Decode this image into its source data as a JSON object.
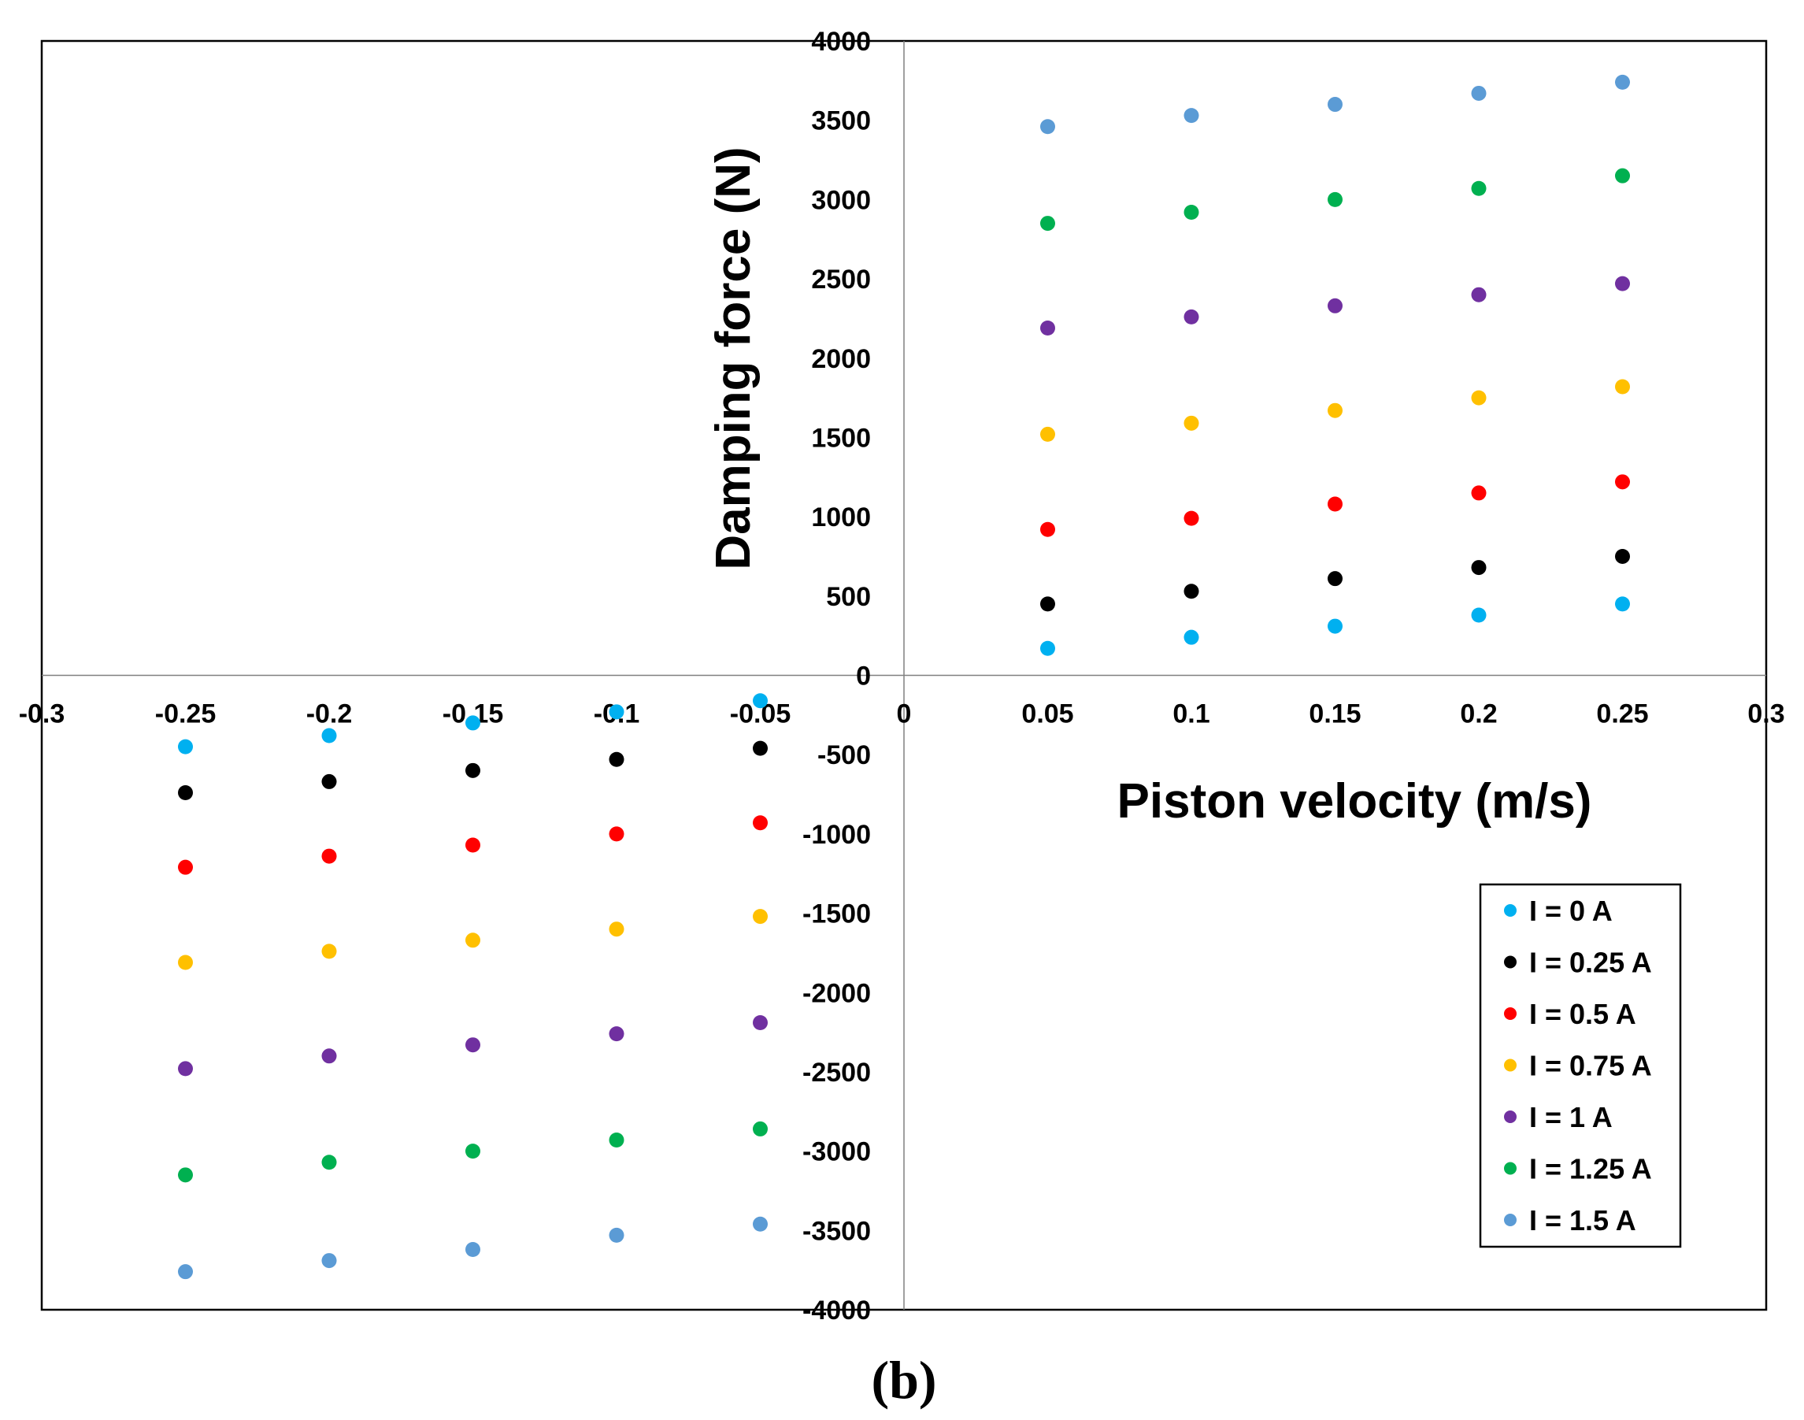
{
  "chart_data": {
    "type": "scatter",
    "title": "",
    "xlabel": "Piston velocity (m/s)",
    "ylabel": "Damping force (N)",
    "xlim": [
      -0.3,
      0.3
    ],
    "ylim": [
      -4000,
      4000
    ],
    "x_ticks": [
      -0.3,
      -0.25,
      -0.2,
      -0.15,
      -0.1,
      -0.05,
      0,
      0.05,
      0.1,
      0.15,
      0.2,
      0.25,
      0.3
    ],
    "x_tick_labels": [
      "-0.3",
      "-0.25",
      "-0.2",
      "-0.15",
      "-0.1",
      "-0.05",
      "0",
      "0.05",
      "0.1",
      "0.15",
      "0.2",
      "0.25",
      "0.3"
    ],
    "y_ticks": [
      -4000,
      -3500,
      -3000,
      -2500,
      -2000,
      -1500,
      -1000,
      -500,
      0,
      500,
      1000,
      1500,
      2000,
      2500,
      3000,
      3500,
      4000
    ],
    "y_tick_labels": [
      "-4000",
      "-3500",
      "-3000",
      "-2500",
      "-2000",
      "-1500",
      "-1000",
      "-500",
      "0",
      "500",
      "1000",
      "1500",
      "2000",
      "2500",
      "3000",
      "3500",
      "4000"
    ],
    "grid": false,
    "legend_position": "bottom-right",
    "x": [
      -0.25,
      -0.2,
      -0.15,
      -0.1,
      -0.05,
      0.05,
      0.1,
      0.15,
      0.2,
      0.25
    ],
    "series": [
      {
        "name": "I = 0 A",
        "color": "#00b0f0",
        "values": [
          -450,
          -380,
          -300,
          -230,
          -160,
          170,
          240,
          310,
          380,
          450
        ]
      },
      {
        "name": "I = 0.25 A",
        "color": "#000000",
        "values": [
          -740,
          -670,
          -600,
          -530,
          -460,
          450,
          530,
          610,
          680,
          750
        ]
      },
      {
        "name": "I = 0.5 A",
        "color": "#ff0000",
        "values": [
          -1210,
          -1140,
          -1070,
          -1000,
          -930,
          920,
          990,
          1080,
          1150,
          1220
        ]
      },
      {
        "name": "I = 0.75 A",
        "color": "#ffc000",
        "values": [
          -1810,
          -1740,
          -1670,
          -1600,
          -1520,
          1520,
          1590,
          1670,
          1750,
          1820
        ]
      },
      {
        "name": "I = 1 A",
        "color": "#7030a0",
        "values": [
          -2480,
          -2400,
          -2330,
          -2260,
          -2190,
          2190,
          2260,
          2330,
          2400,
          2470
        ]
      },
      {
        "name": "I = 1.25 A",
        "color": "#00b050",
        "values": [
          -3150,
          -3070,
          -3000,
          -2930,
          -2860,
          2850,
          2920,
          3000,
          3070,
          3150
        ]
      },
      {
        "name": "I = 1.5 A",
        "color": "#5b9bd5",
        "values": [
          -3760,
          -3690,
          -3620,
          -3530,
          -3460,
          3460,
          3530,
          3600,
          3670,
          3740
        ]
      }
    ]
  },
  "caption": "(b)"
}
